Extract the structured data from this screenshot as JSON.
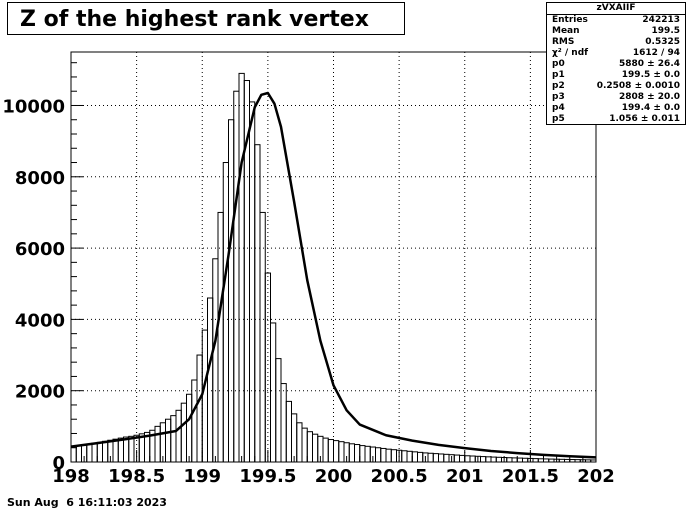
{
  "title": "Z of the highest rank vertex",
  "stats": {
    "name": "zVXAIIF",
    "rows": [
      {
        "label": "Entries",
        "value": "242213"
      },
      {
        "label": "Mean",
        "value": "199.5"
      },
      {
        "label": "RMS",
        "value": "0.5325"
      },
      {
        "label": "χ² / ndf",
        "value": "1612 / 94"
      },
      {
        "label": "p0",
        "value": "5880 ± 26.4"
      },
      {
        "label": "p1",
        "value": "199.5 ± 0.0"
      },
      {
        "label": "p2",
        "value": "0.2508 ± 0.0010"
      },
      {
        "label": "p3",
        "value": "2808 ± 20.0"
      },
      {
        "label": "p4",
        "value": "199.4 ± 0.0"
      },
      {
        "label": "p5",
        "value": "1.056 ± 0.011"
      }
    ]
  },
  "footer": "Sun Aug  6 16:11:03 2023",
  "chart_data": {
    "type": "bar",
    "title": "Z of the highest rank vertex",
    "xlabel": "",
    "ylabel": "",
    "xlim": [
      198,
      202
    ],
    "ylim": [
      0,
      11500
    ],
    "xticks": [
      198,
      198.5,
      199,
      199.5,
      200,
      200.5,
      201,
      201.5,
      202
    ],
    "xtick_labels": [
      "198",
      "198.5",
      "199",
      "199.5",
      "200",
      "200.5",
      "201",
      "201.5",
      "202"
    ],
    "yticks": [
      0,
      2000,
      4000,
      6000,
      8000,
      10000
    ],
    "ytick_labels": [
      "0",
      "2000",
      "4000",
      "6000",
      "8000",
      "10000"
    ],
    "grid": true,
    "legend": "top-right",
    "histogram": {
      "bin_start": 198.0,
      "bin_width": 0.04,
      "counts": [
        430,
        450,
        470,
        500,
        530,
        550,
        580,
        610,
        640,
        670,
        700,
        720,
        750,
        790,
        830,
        890,
        1000,
        1100,
        1200,
        1300,
        1450,
        1650,
        1900,
        2300,
        3000,
        3700,
        4600,
        5700,
        7000,
        8400,
        9600,
        10400,
        10900,
        10700,
        10100,
        8900,
        7000,
        5300,
        3900,
        2900,
        2200,
        1700,
        1350,
        1100,
        950,
        850,
        780,
        720,
        670,
        630,
        600,
        570,
        540,
        510,
        490,
        460,
        440,
        420,
        400,
        380,
        360,
        345,
        330,
        315,
        300,
        285,
        270,
        255,
        245,
        235,
        225,
        215,
        205,
        195,
        185,
        175,
        168,
        160,
        152,
        145,
        138,
        132,
        126,
        120,
        115,
        110,
        105,
        100,
        95,
        90,
        86,
        82,
        78,
        75,
        72,
        69,
        66,
        63,
        60,
        57
      ]
    },
    "fit": {
      "x": [
        198.0,
        198.2,
        198.4,
        198.6,
        198.8,
        198.9,
        199.0,
        199.1,
        199.2,
        199.3,
        199.4,
        199.45,
        199.5,
        199.55,
        199.6,
        199.7,
        199.8,
        199.9,
        200.0,
        200.1,
        200.2,
        200.4,
        200.6,
        200.8,
        201.0,
        201.2,
        201.4,
        201.6,
        201.8,
        202.0
      ],
      "y": [
        430,
        530,
        630,
        740,
        870,
        1200,
        1900,
        3400,
        5800,
        8400,
        9950,
        10300,
        10350,
        10050,
        9400,
        7300,
        5100,
        3400,
        2150,
        1450,
        1050,
        750,
        600,
        480,
        390,
        310,
        250,
        200,
        160,
        130
      ]
    }
  }
}
